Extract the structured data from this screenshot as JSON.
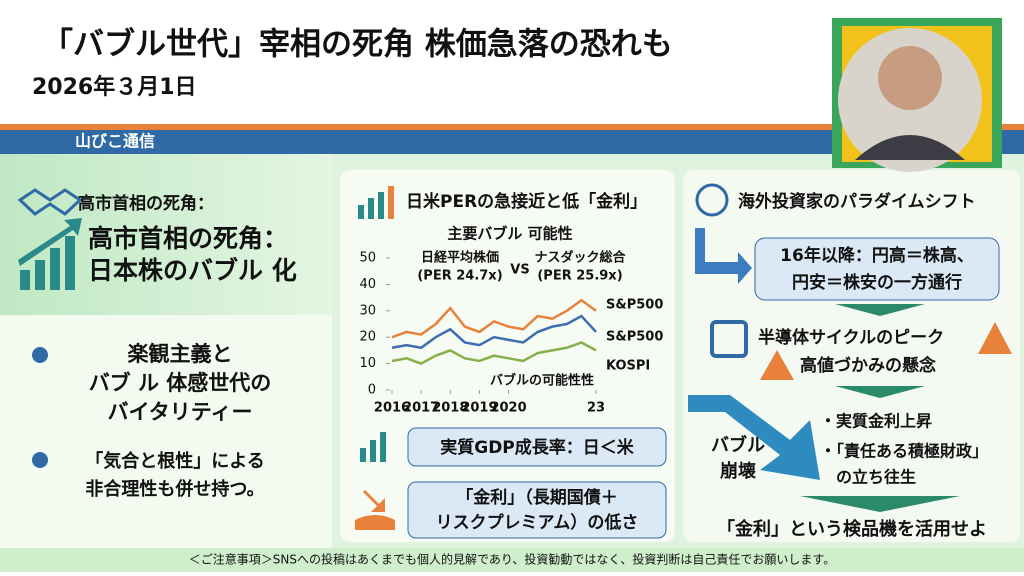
{
  "header": {
    "title": "「バブル世代」宰相の死角  株価急落の恐れも",
    "date": "2026年３月1日",
    "band_label": "山びこ通信"
  },
  "left": {
    "kicker": "高市首相の死角：",
    "headline": [
      "高市首相の死角：",
      "日本株のバブル 化"
    ],
    "bullets": [
      [
        "楽観主義と",
        "バブ ル 体感世代の",
        "バイタリティー"
      ],
      [
        "「気合と根性」による",
        "非合理性も併せ持つ。"
      ]
    ]
  },
  "middle": {
    "heading": "日米PERの急接近と低「金利」",
    "chart": {
      "type": "line",
      "title": "主要バブル 可能性",
      "annotations": [
        [
          "日経平均株価",
          "(PER 24.7x)"
        ],
        "VS",
        [
          "ナスダック総合",
          "(PER 25.9x)"
        ],
        "バブルの可能性性"
      ],
      "x": [
        2016,
        2016.5,
        2017,
        2017.5,
        2018,
        2018.5,
        2019,
        2019.5,
        2020,
        2020.5,
        2021,
        2021.5,
        2022,
        2022.5,
        2023
      ],
      "xlim": [
        2016,
        2023
      ],
      "xticks": [
        2016,
        2017,
        2018,
        2019,
        2020,
        {
          "value": 2023,
          "label": "23"
        }
      ],
      "ylim": [
        0,
        50
      ],
      "yticks": [
        0,
        10,
        20,
        30,
        40,
        50
      ],
      "series": [
        {
          "name": "S&P500",
          "color": "#e8823a",
          "values": [
            20,
            22,
            21,
            25,
            31,
            24,
            22,
            26,
            24,
            23,
            28,
            27,
            30,
            34,
            30
          ]
        },
        {
          "name": "S&P500",
          "color": "#3d6fb0",
          "values": [
            16,
            17,
            16,
            20,
            23,
            18,
            17,
            20,
            19,
            18,
            22,
            24,
            25,
            28,
            22
          ]
        },
        {
          "name": "KOSPI",
          "color": "#86b04a",
          "values": [
            11,
            12,
            10,
            13,
            15,
            12,
            11,
            13,
            12,
            11,
            14,
            15,
            16,
            18,
            15
          ]
        }
      ]
    },
    "box1": "実質GDP成長率：日＜米",
    "box2": [
      "「金利」（長期国債＋",
      "リスクプレミアム）の低さ"
    ]
  },
  "right": {
    "heading": "海外投資家のパラダイムシフト",
    "box": [
      "16年以降：円高＝株高、",
      "円安＝株安の一方通行"
    ],
    "semi": [
      "半導体サイクルのピーク",
      "高値づかみの懸念"
    ],
    "crash": [
      "バブル",
      "崩壊"
    ],
    "points": [
      [
        "・実質金利上昇"
      ],
      [
        "・「責任ある積極財政」",
        "の立ち往生"
      ]
    ],
    "conclusion": "「金利」という検品機を活用せよ"
  },
  "footer": "＜ご注意事項＞SNSへの投稿はあくまでも個人的見解であり、投資勧動ではなく、投資判断は自己責任でお願いします。"
}
